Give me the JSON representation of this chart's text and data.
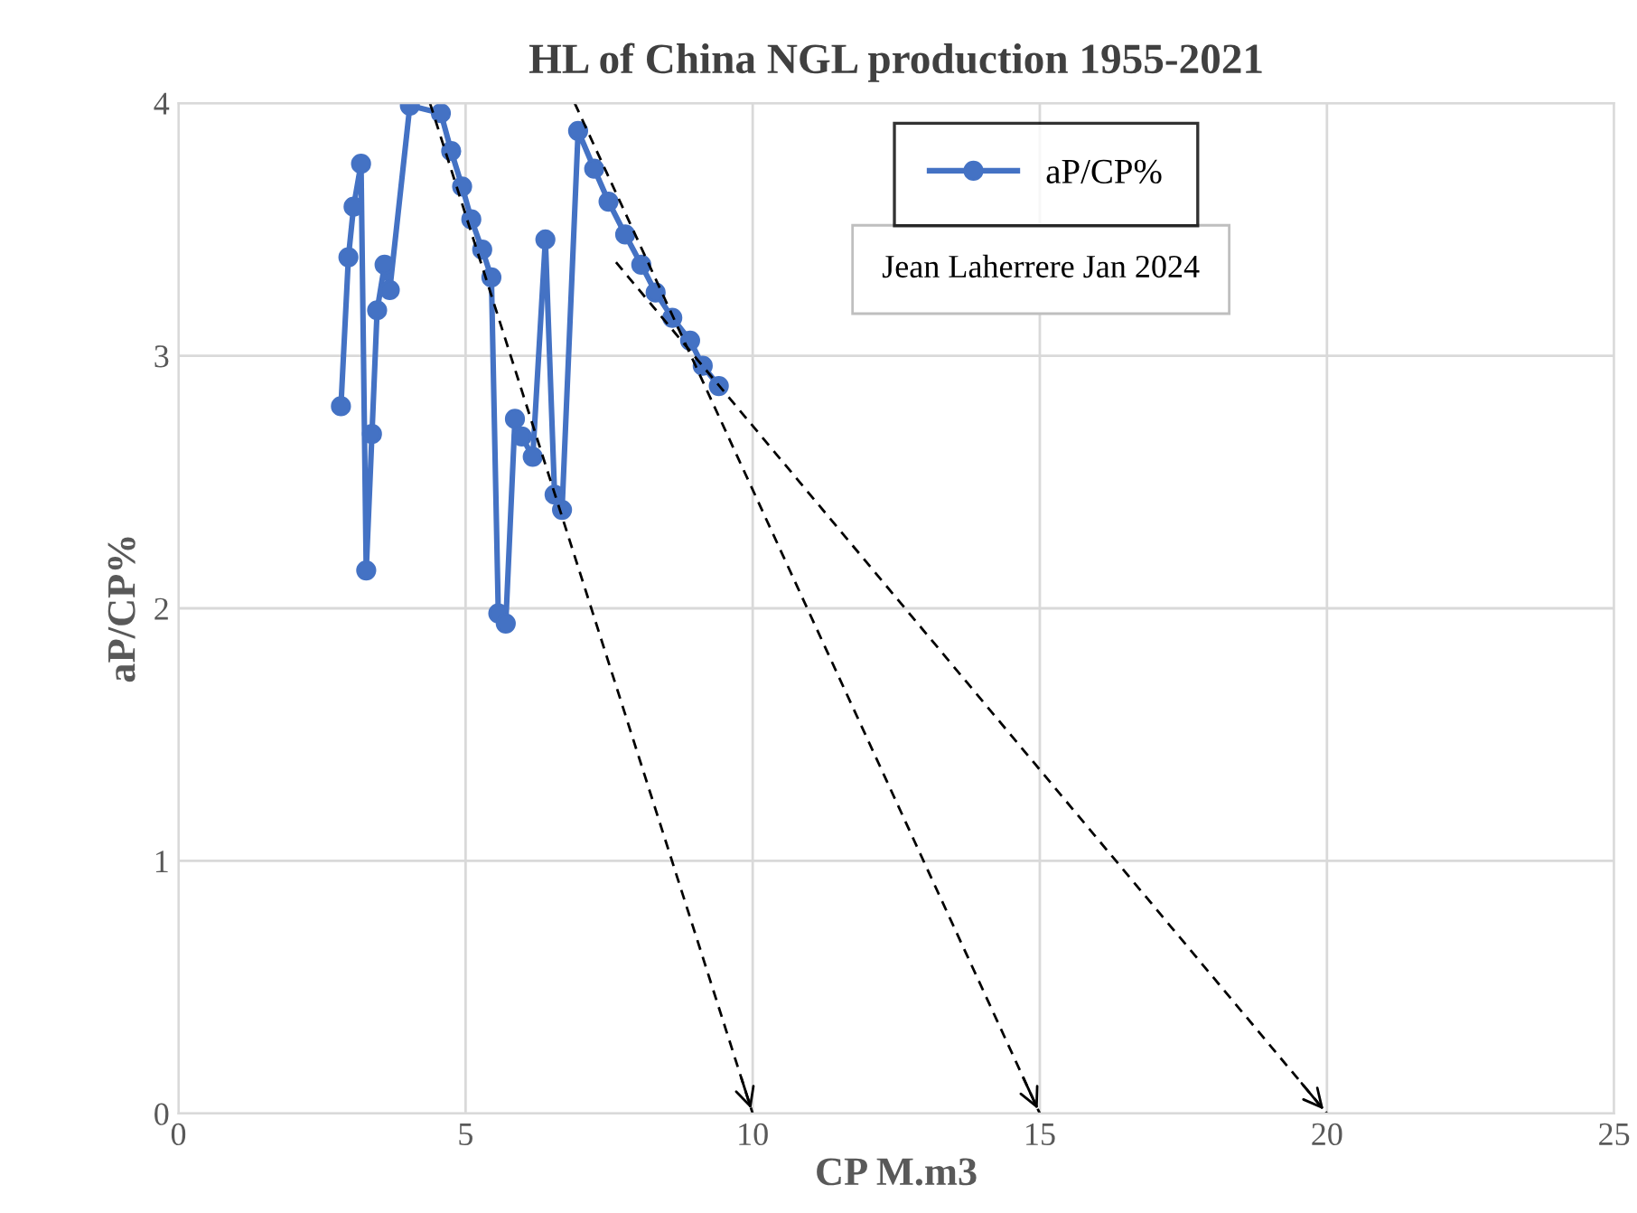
{
  "chart_data": {
    "type": "line",
    "title": "HL of China NGL production 1955-2021",
    "xlabel": "CP M.m3",
    "ylabel": "aP/CP%",
    "xlim": [
      0,
      25
    ],
    "ylim": [
      0,
      4
    ],
    "xticks": [
      0,
      5,
      10,
      15,
      20,
      25
    ],
    "yticks": [
      0,
      1,
      2,
      3,
      4
    ],
    "grid": true,
    "legend": "top right",
    "series": [
      {
        "name": "aP/CP%",
        "color": "#4472c4",
        "marker": "circle",
        "line_style": "solid",
        "x": [
          2.83,
          2.96,
          3.05,
          3.18,
          3.27,
          3.37,
          3.46,
          3.59,
          3.68,
          4.03,
          4.57,
          4.75,
          4.94,
          5.1,
          5.29,
          5.45,
          5.57,
          5.7,
          5.86,
          5.98,
          6.17,
          6.39,
          6.55,
          6.68,
          6.96,
          7.24,
          7.49,
          7.78,
          8.06,
          8.31,
          8.6,
          8.91,
          9.13,
          9.41
        ],
        "values": [
          2.8,
          3.39,
          3.59,
          3.76,
          2.15,
          2.69,
          3.18,
          3.36,
          3.26,
          3.99,
          3.96,
          3.81,
          3.67,
          3.54,
          3.42,
          3.31,
          1.98,
          1.94,
          2.75,
          2.68,
          2.6,
          3.46,
          2.45,
          2.39,
          3.89,
          3.74,
          3.61,
          3.48,
          3.36,
          3.25,
          3.15,
          3.06,
          2.96,
          2.88
        ]
      },
      {
        "type": "line",
        "color": "#000000",
        "marker": "none",
        "line_style": "dashed",
        "x": [
          4.38,
          10
        ],
        "values": [
          4,
          0
        ]
      },
      {
        "type": "line",
        "color": "#000000",
        "marker": "none",
        "line_style": "dashed",
        "x": [
          6.9,
          15
        ],
        "values": [
          4,
          0
        ]
      },
      {
        "type": "line",
        "color": "#000000",
        "marker": "none",
        "line_style": "dashed",
        "x": [
          7.62,
          20
        ],
        "values": [
          3.37,
          0
        ]
      }
    ],
    "annotations": [
      "Jean Laherrere Jan 2024"
    ]
  }
}
